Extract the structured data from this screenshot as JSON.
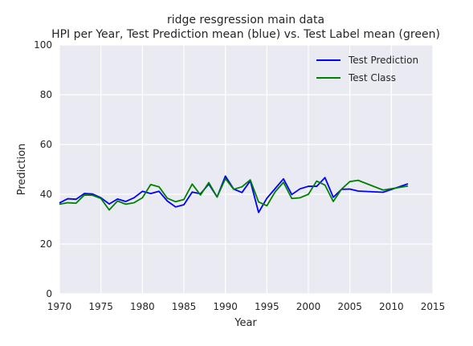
{
  "chart_data": {
    "type": "line",
    "title": "ridge resgression main data",
    "subtitle": "HPI per Year, Test Prediction mean (blue) vs. Test Label mean (green)",
    "xlabel": "Year",
    "ylabel": "Prediction",
    "xlim": [
      1970,
      2015
    ],
    "ylim": [
      0,
      100
    ],
    "xticks": [
      "1970",
      "1975",
      "1980",
      "1985",
      "1990",
      "1995",
      "2000",
      "2005",
      "2010",
      "2015"
    ],
    "yticks": [
      "0",
      "20",
      "40",
      "60",
      "80",
      "100"
    ],
    "grid": true,
    "legend_position": "top-right",
    "series": [
      {
        "name": "Test Prediction",
        "color": "#0000ff",
        "x": [
          1970,
          1971,
          1972,
          1973,
          1974,
          1975,
          1976,
          1977,
          1978,
          1979,
          1980,
          1981,
          1982,
          1983,
          1984,
          1985,
          1986,
          1987,
          1988,
          1989,
          1990,
          1991,
          1992,
          1993,
          1994,
          1995,
          1996,
          1997,
          1998,
          1999,
          2000,
          2001,
          2002,
          2003,
          2004,
          2005,
          2006,
          2009,
          2012
        ],
        "y": [
          36.5,
          38.2,
          38.0,
          40.3,
          40.1,
          38.6,
          36.1,
          38.1,
          37.1,
          38.6,
          41.2,
          40.3,
          41.2,
          37.3,
          34.9,
          35.8,
          40.9,
          40.2,
          44.1,
          38.9,
          47.3,
          42.1,
          40.7,
          45.4,
          32.7,
          38.4,
          42.3,
          46.2,
          39.9,
          42.2,
          43.2,
          43.2,
          46.7,
          38.8,
          42.0,
          42.1,
          41.3,
          40.8,
          44.2
        ]
      },
      {
        "name": "Test Class",
        "color": "#008000",
        "x": [
          1970,
          1971,
          1972,
          1973,
          1974,
          1975,
          1976,
          1977,
          1978,
          1979,
          1980,
          1981,
          1982,
          1983,
          1984,
          1985,
          1986,
          1987,
          1988,
          1989,
          1990,
          1991,
          1992,
          1993,
          1994,
          1995,
          1996,
          1997,
          1998,
          1999,
          2000,
          2001,
          2002,
          2003,
          2004,
          2005,
          2006,
          2009,
          2012
        ],
        "y": [
          36.0,
          36.6,
          36.4,
          39.7,
          39.6,
          38.3,
          33.7,
          37.3,
          36.0,
          36.6,
          38.6,
          43.9,
          43.0,
          38.4,
          37.0,
          37.9,
          44.1,
          39.7,
          44.7,
          38.9,
          46.3,
          42.0,
          43.0,
          45.8,
          36.9,
          35.4,
          41.0,
          44.8,
          38.3,
          38.6,
          40.0,
          45.3,
          43.7,
          37.1,
          42.1,
          45.1,
          45.6,
          41.7,
          43.3
        ]
      }
    ]
  }
}
